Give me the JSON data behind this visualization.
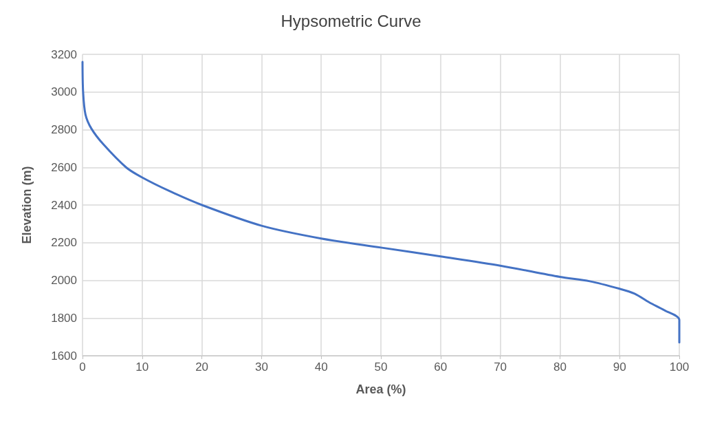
{
  "chart_data": {
    "type": "line",
    "title": "Hypsometric Curve",
    "xlabel": "Area (%)",
    "ylabel": "Elevation (m)",
    "xlim": [
      0,
      100
    ],
    "xticks": [
      0,
      10,
      20,
      30,
      40,
      50,
      60,
      70,
      80,
      90,
      100
    ],
    "ylim": [
      1600,
      3200
    ],
    "yticks": [
      1600,
      1800,
      2000,
      2200,
      2400,
      2600,
      2800,
      3000,
      3200
    ],
    "grid": true,
    "marker": "none",
    "line_style": "solid",
    "series": [
      {
        "color": "#4472c4",
        "x": [
          0,
          0.1,
          0.5,
          1.5,
          3.5,
          7.3,
          10,
          14.5,
          20,
          30,
          40,
          50,
          60,
          70,
          80,
          85,
          90,
          92.5,
          95,
          97.5,
          100,
          100
        ],
        "values": [
          3160,
          3000,
          2880,
          2805,
          2722,
          2600,
          2546,
          2475,
          2400,
          2290,
          2222,
          2174,
          2127,
          2078,
          2018,
          1995,
          1955,
          1929,
          1882,
          1841,
          1790,
          1670
        ]
      }
    ]
  }
}
